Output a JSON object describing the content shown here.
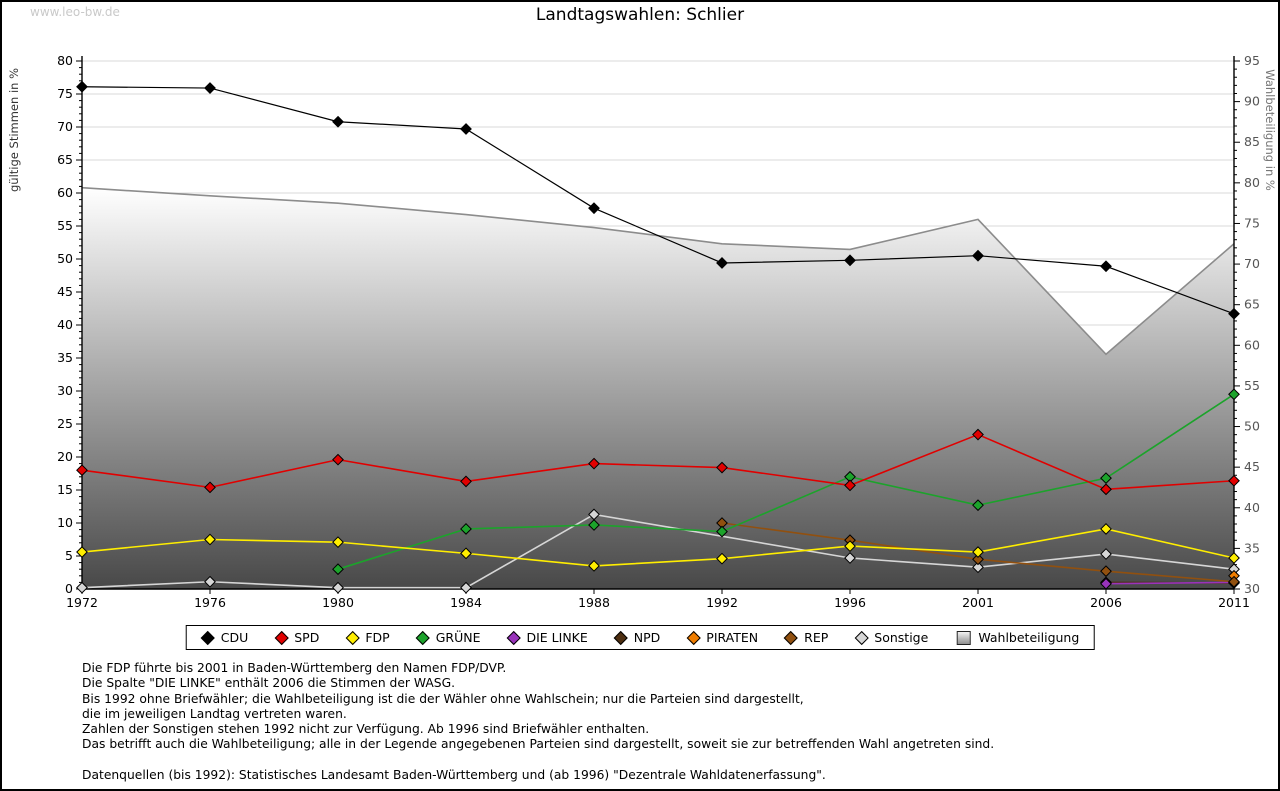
{
  "watermark": "www.leo-bw.de",
  "title": "Landtagswahlen: Schlier",
  "chart_data": {
    "type": "line",
    "x": [
      1972,
      1976,
      1980,
      1984,
      1988,
      1992,
      1996,
      2001,
      2006,
      2011
    ],
    "ylabel_left": "gültige Stimmen in %",
    "ylabel_right": "Wahlbeteiligung in %",
    "ylim_left": [
      0,
      80
    ],
    "ylim_right": [
      30,
      95
    ],
    "ytick_step": 5,
    "grid": true,
    "legend_position": "bottom",
    "series": [
      {
        "name": "CDU",
        "color": "#000000",
        "values": [
          76.1,
          75.9,
          70.8,
          69.7,
          57.7,
          49.4,
          49.8,
          50.5,
          48.9,
          41.7
        ]
      },
      {
        "name": "SPD",
        "color": "#e10000",
        "values": [
          18.0,
          15.4,
          19.6,
          16.3,
          19.0,
          18.4,
          15.7,
          23.4,
          15.1,
          16.4
        ]
      },
      {
        "name": "FDP",
        "color": "#ffee00",
        "values": [
          5.6,
          7.5,
          7.1,
          5.4,
          3.5,
          4.6,
          6.5,
          5.6,
          9.1,
          4.7
        ]
      },
      {
        "name": "GRÜNE",
        "color": "#1ca32b",
        "values": [
          null,
          null,
          3.0,
          9.1,
          9.7,
          8.7,
          17.0,
          12.7,
          16.8,
          29.5
        ]
      },
      {
        "name": "DIE LINKE",
        "color": "#9933bb",
        "values": [
          null,
          null,
          null,
          null,
          null,
          null,
          null,
          null,
          0.8,
          1.0
        ]
      },
      {
        "name": "NPD",
        "color": "#4d2e10",
        "values": [
          null,
          null,
          null,
          null,
          null,
          null,
          null,
          null,
          1.0,
          0.9
        ]
      },
      {
        "name": "PIRATEN",
        "color": "#ef7d00",
        "values": [
          null,
          null,
          null,
          null,
          null,
          null,
          null,
          null,
          null,
          2.0
        ]
      },
      {
        "name": "REP",
        "color": "#91500f",
        "values": [
          null,
          null,
          null,
          null,
          null,
          10.0,
          7.4,
          4.5,
          2.7,
          1.1
        ]
      },
      {
        "name": "Sonstige",
        "color": "#d6d6d6",
        "values": [
          0.2,
          1.1,
          0.2,
          0.2,
          11.3,
          null,
          4.7,
          3.3,
          5.3,
          3.0
        ]
      }
    ],
    "participation": {
      "name": "Wahlbeteiligung",
      "axis": "right",
      "fill_top": "#ffffff",
      "fill_bottom": "#484848",
      "stroke": "#8c8c8c",
      "values": [
        79.4,
        78.4,
        77.5,
        76.1,
        74.5,
        72.5,
        71.8,
        75.5,
        58.9,
        72.5
      ]
    }
  },
  "legend": [
    {
      "name": "CDU",
      "color": "#000000",
      "shape": "diamond"
    },
    {
      "name": "SPD",
      "color": "#e10000",
      "shape": "diamond"
    },
    {
      "name": "FDP",
      "color": "#ffee00",
      "shape": "diamond"
    },
    {
      "name": "GRÜNE",
      "color": "#1ca32b",
      "shape": "diamond"
    },
    {
      "name": "DIE LINKE",
      "color": "#9933bb",
      "shape": "diamond"
    },
    {
      "name": "NPD",
      "color": "#4d2e10",
      "shape": "diamond"
    },
    {
      "name": "PIRATEN",
      "color": "#ef7d00",
      "shape": "diamond"
    },
    {
      "name": "REP",
      "color": "#91500f",
      "shape": "diamond"
    },
    {
      "name": "Sonstige",
      "color": "#d6d6d6",
      "shape": "diamond"
    },
    {
      "name": "Wahlbeteiligung",
      "color": "#b5b5b5",
      "shape": "square"
    }
  ],
  "notes": [
    "Die FDP führte bis 2001 in Baden-Württemberg den Namen FDP/DVP.",
    "Die Spalte \"DIE LINKE\" enthält 2006 die Stimmen der WASG.",
    "Bis 1992 ohne Briefwähler; die Wahlbeteiligung ist die der Wähler ohne Wahlschein; nur die Parteien sind dargestellt,",
    "die im jeweiligen Landtag vertreten waren.",
    "Zahlen der Sonstigen stehen 1992 nicht zur Verfügung. Ab 1996 sind Briefwähler enthalten.",
    "Das betrifft auch die Wahlbeteiligung; alle in der Legende angegebenen Parteien sind dargestellt, soweit sie zur betreffenden Wahl angetreten sind."
  ],
  "source": "Datenquellen (bis 1992): Statistisches Landesamt Baden-Württemberg und (ab 1996) \"Dezentrale Wahldatenerfassung\"."
}
